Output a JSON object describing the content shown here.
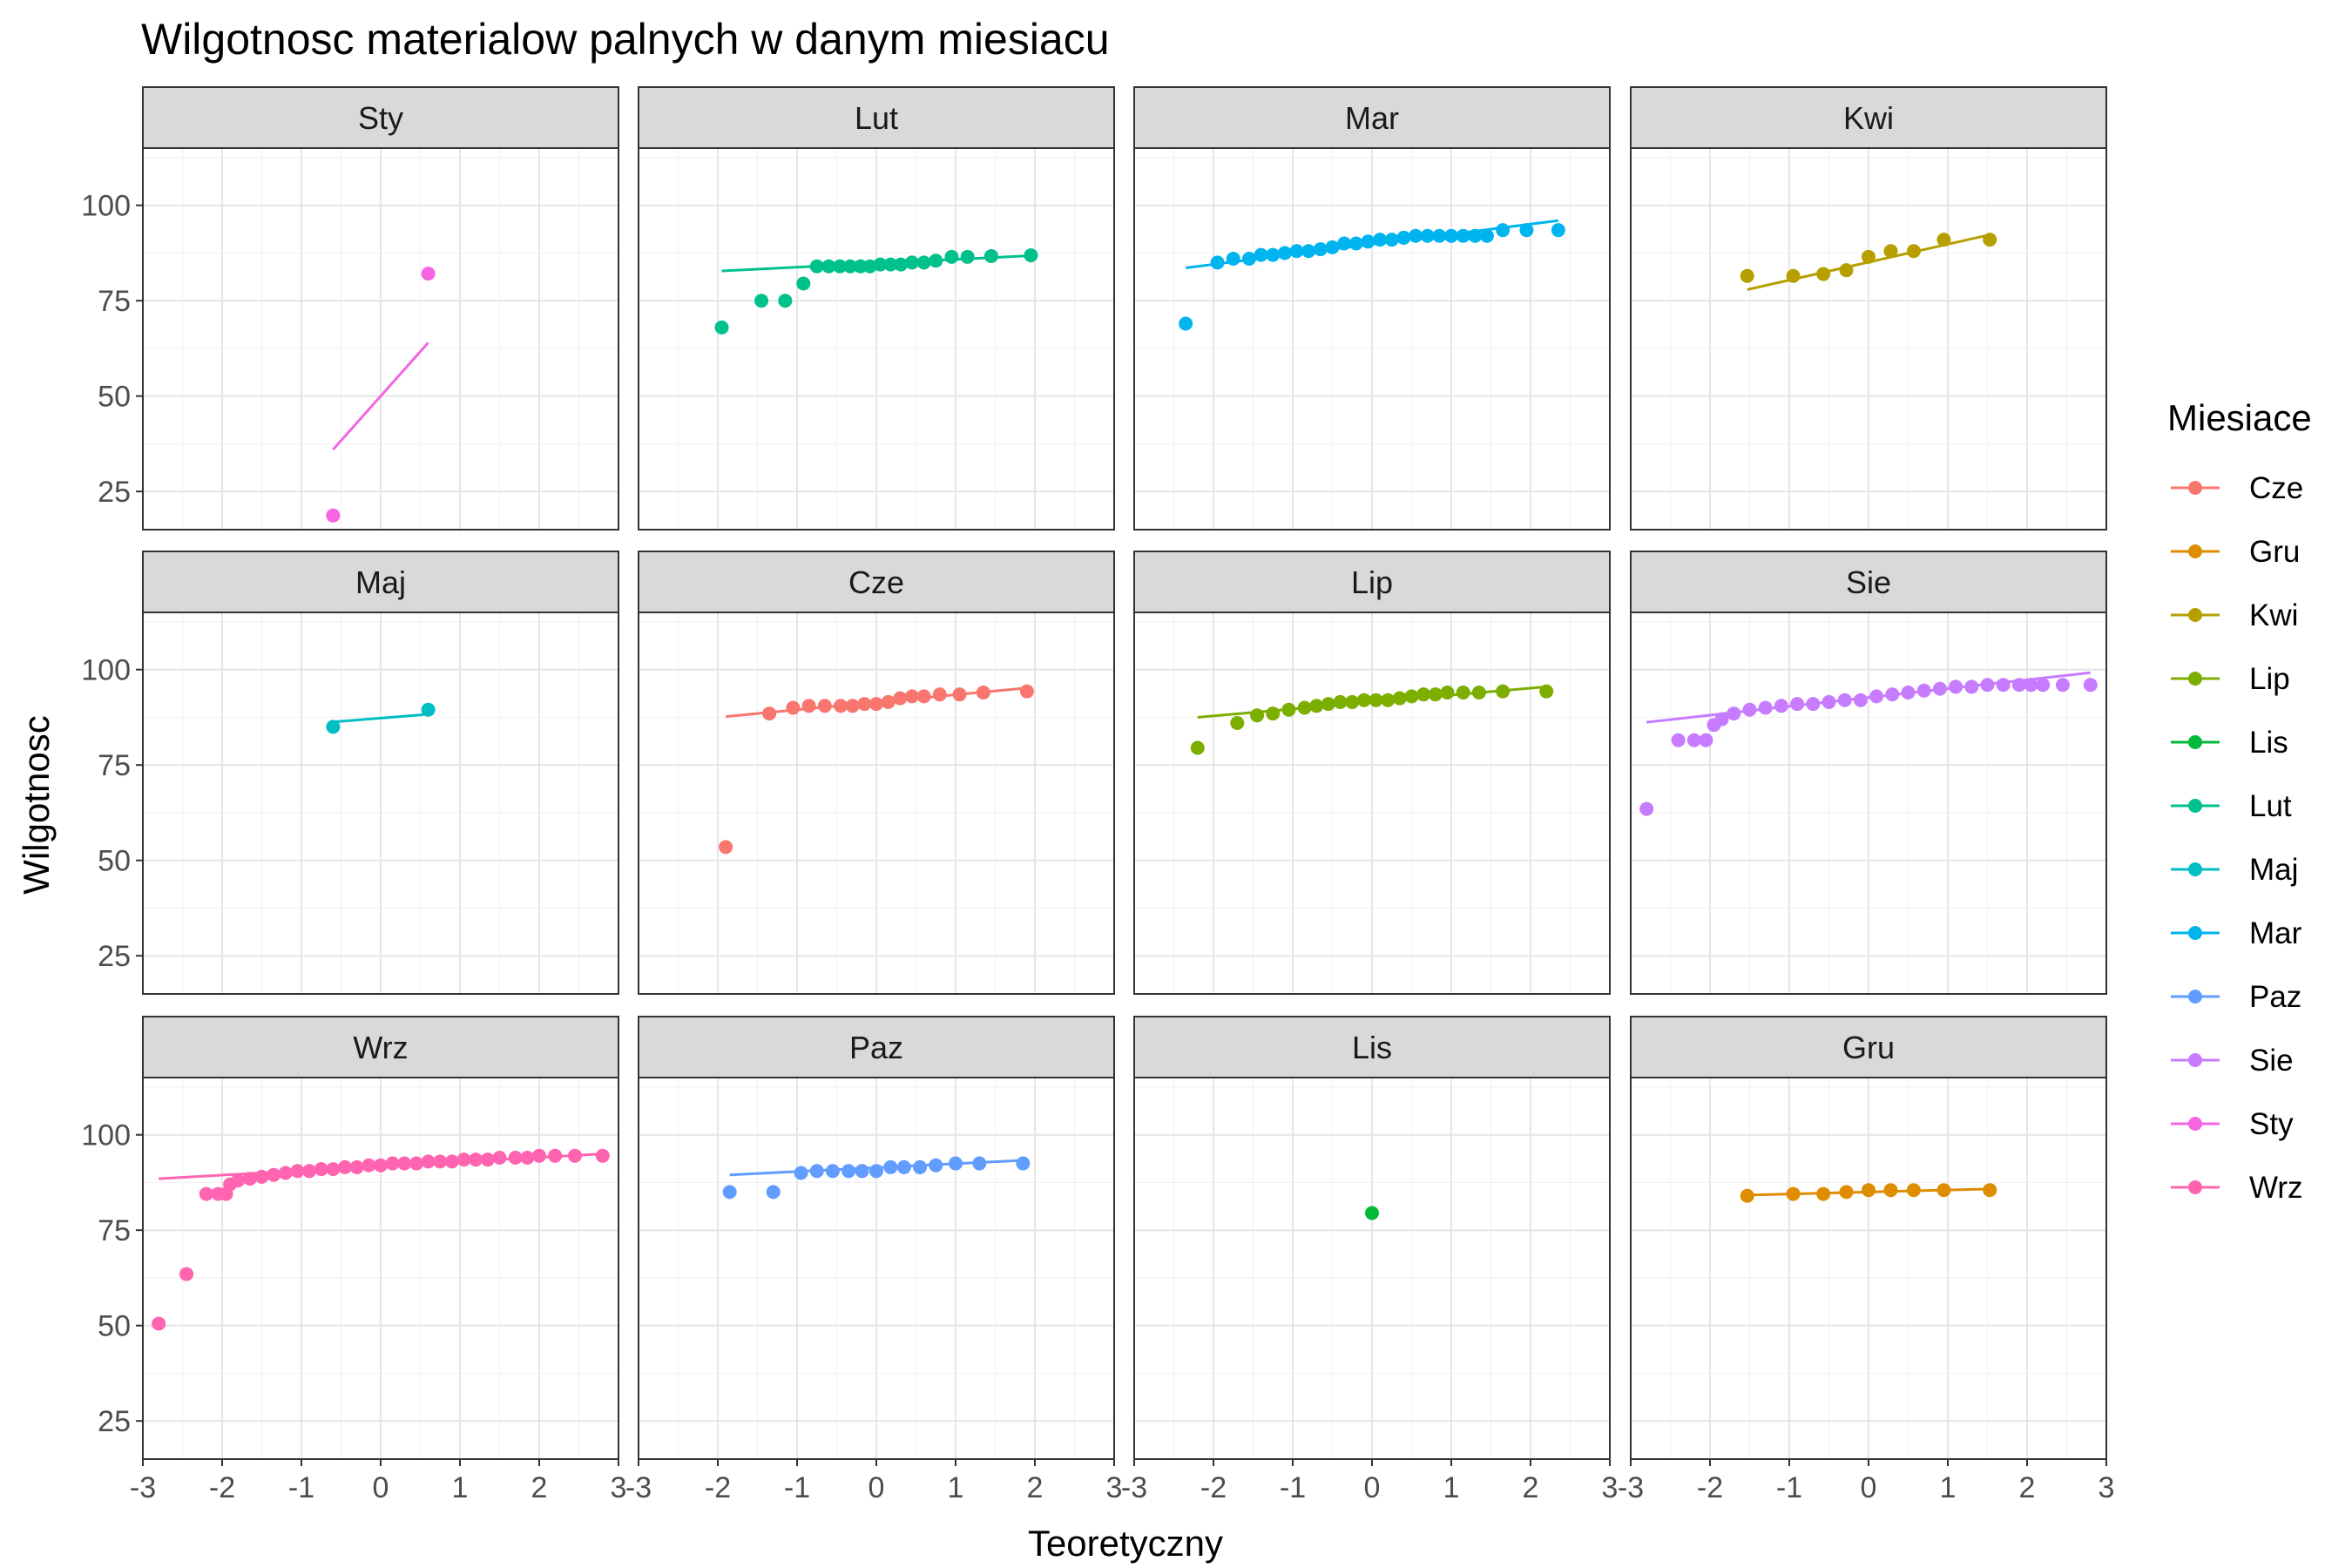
{
  "chart_data": {
    "type": "scatter",
    "subtype": "qq-plot facets",
    "title": "Wilgotnosc materialow palnych w danym miesiacu",
    "xlabel": "Teoretyczny",
    "ylabel": "Wilgotnosc",
    "xlim": [
      -3,
      3
    ],
    "ylim": [
      15,
      115
    ],
    "x_ticks": [
      "-3",
      "-2",
      "-1",
      "0",
      "1",
      "2",
      "3"
    ],
    "x_tick_values": [
      -3,
      -2,
      -1,
      0,
      1,
      2,
      3
    ],
    "y_ticks": [
      "25",
      "50",
      "75",
      "100"
    ],
    "y_tick_values": [
      25,
      50,
      75,
      100
    ],
    "grid": true,
    "legend": {
      "title": "Miesiace",
      "position": "right",
      "entries": [
        "Cze",
        "Gru",
        "Kwi",
        "Lip",
        "Lis",
        "Lut",
        "Maj",
        "Mar",
        "Paz",
        "Sie",
        "Sty",
        "Wrz"
      ],
      "colors": [
        "#F8766D",
        "#DE8C00",
        "#B79F00",
        "#7CAE00",
        "#00BA38",
        "#00C08B",
        "#00BFC4",
        "#00B4F0",
        "#619CFF",
        "#C77CFF",
        "#F564E3",
        "#FF64B0"
      ]
    },
    "panels": [
      {
        "label": "Sty",
        "color": "#F564E3",
        "line": [
          [
            -0.6,
            36
          ],
          [
            0.6,
            64
          ]
        ],
        "points": [
          [
            -0.6,
            18.7
          ],
          [
            0.6,
            82.1
          ]
        ]
      },
      {
        "label": "Lut",
        "color": "#00C08B",
        "line": [
          [
            -1.95,
            82.8
          ],
          [
            1.95,
            86.8
          ]
        ],
        "points": [
          [
            -1.95,
            68
          ],
          [
            -1.45,
            75
          ],
          [
            -1.15,
            75
          ],
          [
            -0.92,
            79.5
          ],
          [
            -0.75,
            84
          ],
          [
            -0.6,
            84
          ],
          [
            -0.46,
            84
          ],
          [
            -0.33,
            84
          ],
          [
            -0.2,
            84
          ],
          [
            -0.08,
            84
          ],
          [
            0.05,
            84.5
          ],
          [
            0.18,
            84.5
          ],
          [
            0.31,
            84.5
          ],
          [
            0.45,
            85
          ],
          [
            0.6,
            85
          ],
          [
            0.75,
            85.5
          ],
          [
            0.95,
            86.5
          ],
          [
            1.15,
            86.5
          ],
          [
            1.45,
            86.7
          ],
          [
            1.95,
            86.9
          ]
        ]
      },
      {
        "label": "Mar",
        "color": "#00B4F0",
        "line": [
          [
            -2.35,
            83.6
          ],
          [
            2.35,
            96
          ]
        ],
        "points": [
          [
            -2.35,
            69
          ],
          [
            -1.95,
            85
          ],
          [
            -1.75,
            86
          ],
          [
            -1.55,
            86
          ],
          [
            -1.4,
            87
          ],
          [
            -1.25,
            87
          ],
          [
            -1.1,
            87.5
          ],
          [
            -0.95,
            88
          ],
          [
            -0.8,
            88
          ],
          [
            -0.65,
            88.5
          ],
          [
            -0.5,
            89
          ],
          [
            -0.35,
            90
          ],
          [
            -0.2,
            90
          ],
          [
            -0.05,
            90.5
          ],
          [
            0.1,
            91
          ],
          [
            0.25,
            91
          ],
          [
            0.4,
            91.5
          ],
          [
            0.55,
            92
          ],
          [
            0.7,
            92
          ],
          [
            0.85,
            92
          ],
          [
            1.0,
            92
          ],
          [
            1.15,
            92
          ],
          [
            1.3,
            92
          ],
          [
            1.45,
            92
          ],
          [
            1.65,
            93.5
          ],
          [
            1.95,
            93.5
          ],
          [
            2.35,
            93.5
          ]
        ]
      },
      {
        "label": "Kwi",
        "color": "#B79F00",
        "line": [
          [
            -1.53,
            77.9
          ],
          [
            1.53,
            92.3
          ]
        ],
        "points": [
          [
            -1.53,
            81.5
          ],
          [
            -0.95,
            81.5
          ],
          [
            -0.57,
            82
          ],
          [
            -0.28,
            83
          ],
          [
            0,
            86.5
          ],
          [
            0.28,
            88
          ],
          [
            0.57,
            88
          ],
          [
            0.95,
            91
          ],
          [
            1.53,
            91
          ]
        ]
      },
      {
        "label": "Maj",
        "color": "#00BFC4",
        "line": [
          [
            -0.6,
            86.3
          ],
          [
            0.6,
            88.3
          ]
        ],
        "points": [
          [
            -0.6,
            85
          ],
          [
            0.6,
            89.5
          ]
        ]
      },
      {
        "label": "Cze",
        "color": "#F8766D",
        "line": [
          [
            -1.9,
            87.7
          ],
          [
            1.9,
            95.2
          ]
        ],
        "points": [
          [
            -1.9,
            53.5
          ],
          [
            -1.35,
            88.5
          ],
          [
            -1.05,
            90
          ],
          [
            -0.85,
            90.5
          ],
          [
            -0.65,
            90.5
          ],
          [
            -0.45,
            90.5
          ],
          [
            -0.3,
            90.5
          ],
          [
            -0.15,
            91
          ],
          [
            0,
            91
          ],
          [
            0.15,
            91.5
          ],
          [
            0.3,
            92.5
          ],
          [
            0.45,
            93
          ],
          [
            0.6,
            93
          ],
          [
            0.8,
            93.5
          ],
          [
            1.05,
            93.5
          ],
          [
            1.35,
            94
          ],
          [
            1.9,
            94.3
          ]
        ]
      },
      {
        "label": "Lip",
        "color": "#7CAE00",
        "line": [
          [
            -2.2,
            87.5
          ],
          [
            2.2,
            95.5
          ]
        ],
        "points": [
          [
            -2.2,
            79.5
          ],
          [
            -1.7,
            86
          ],
          [
            -1.45,
            88
          ],
          [
            -1.25,
            88.5
          ],
          [
            -1.05,
            89.5
          ],
          [
            -0.85,
            90
          ],
          [
            -0.7,
            90.5
          ],
          [
            -0.55,
            91
          ],
          [
            -0.4,
            91.5
          ],
          [
            -0.25,
            91.5
          ],
          [
            -0.1,
            92
          ],
          [
            0.05,
            92
          ],
          [
            0.2,
            92
          ],
          [
            0.35,
            92.5
          ],
          [
            0.5,
            93
          ],
          [
            0.65,
            93.5
          ],
          [
            0.8,
            93.5
          ],
          [
            0.95,
            94
          ],
          [
            1.15,
            94
          ],
          [
            1.35,
            94
          ],
          [
            1.65,
            94.3
          ],
          [
            2.2,
            94.3
          ]
        ]
      },
      {
        "label": "Sie",
        "color": "#C77CFF",
        "line": [
          [
            -2.8,
            86.2
          ],
          [
            2.8,
            99.2
          ]
        ],
        "points": [
          [
            -2.8,
            63.5
          ],
          [
            -2.4,
            81.5
          ],
          [
            -2.2,
            81.5
          ],
          [
            -2.05,
            81.5
          ],
          [
            -1.95,
            85.5
          ],
          [
            -1.85,
            87
          ],
          [
            -1.7,
            88.5
          ],
          [
            -1.5,
            89.5
          ],
          [
            -1.3,
            90
          ],
          [
            -1.1,
            90.5
          ],
          [
            -0.9,
            91
          ],
          [
            -0.7,
            91
          ],
          [
            -0.5,
            91.5
          ],
          [
            -0.3,
            92
          ],
          [
            -0.1,
            92
          ],
          [
            0.1,
            93
          ],
          [
            0.3,
            93.5
          ],
          [
            0.5,
            94
          ],
          [
            0.7,
            94.5
          ],
          [
            0.9,
            95
          ],
          [
            1.1,
            95.5
          ],
          [
            1.3,
            95.5
          ],
          [
            1.5,
            96
          ],
          [
            1.7,
            96
          ],
          [
            1.9,
            96
          ],
          [
            2.05,
            96
          ],
          [
            2.2,
            96
          ],
          [
            2.45,
            96
          ],
          [
            2.8,
            96
          ]
        ]
      },
      {
        "label": "Wrz",
        "color": "#FF64B0",
        "line": [
          [
            -2.8,
            88.5
          ],
          [
            2.8,
            95
          ]
        ],
        "points": [
          [
            -2.8,
            50.5
          ],
          [
            -2.45,
            63.5
          ],
          [
            -2.2,
            84.5
          ],
          [
            -2.05,
            84.5
          ],
          [
            -1.95,
            84.5
          ],
          [
            -1.9,
            87
          ],
          [
            -1.8,
            88
          ],
          [
            -1.65,
            88.5
          ],
          [
            -1.5,
            89
          ],
          [
            -1.35,
            89.5
          ],
          [
            -1.2,
            90
          ],
          [
            -1.05,
            90.5
          ],
          [
            -0.9,
            90.5
          ],
          [
            -0.75,
            91
          ],
          [
            -0.6,
            91
          ],
          [
            -0.45,
            91.5
          ],
          [
            -0.3,
            91.5
          ],
          [
            -0.15,
            92
          ],
          [
            0,
            92
          ],
          [
            0.15,
            92.5
          ],
          [
            0.3,
            92.5
          ],
          [
            0.45,
            92.5
          ],
          [
            0.6,
            93
          ],
          [
            0.75,
            93
          ],
          [
            0.9,
            93
          ],
          [
            1.05,
            93.5
          ],
          [
            1.2,
            93.5
          ],
          [
            1.35,
            93.5
          ],
          [
            1.5,
            94
          ],
          [
            1.7,
            94
          ],
          [
            1.85,
            94
          ],
          [
            2.0,
            94.5
          ],
          [
            2.2,
            94.5
          ],
          [
            2.45,
            94.5
          ],
          [
            2.8,
            94.5
          ]
        ]
      },
      {
        "label": "Paz",
        "color": "#619CFF",
        "line": [
          [
            -1.85,
            89.5
          ],
          [
            1.85,
            93.3
          ]
        ],
        "points": [
          [
            -1.85,
            85
          ],
          [
            -1.3,
            85
          ],
          [
            -0.95,
            90
          ],
          [
            -0.75,
            90.5
          ],
          [
            -0.55,
            90.5
          ],
          [
            -0.35,
            90.5
          ],
          [
            -0.18,
            90.5
          ],
          [
            0,
            90.5
          ],
          [
            0.18,
            91.5
          ],
          [
            0.35,
            91.5
          ],
          [
            0.55,
            91.5
          ],
          [
            0.75,
            92
          ],
          [
            1.0,
            92.5
          ],
          [
            1.3,
            92.5
          ],
          [
            1.85,
            92.5
          ]
        ]
      },
      {
        "label": "Lis",
        "color": "#00BA38",
        "line": [],
        "points": [
          [
            0,
            79.5
          ]
        ]
      },
      {
        "label": "Gru",
        "color": "#DE8C00",
        "line": [
          [
            -1.53,
            84.2
          ],
          [
            1.53,
            85.8
          ]
        ],
        "points": [
          [
            -1.53,
            84
          ],
          [
            -0.95,
            84.5
          ],
          [
            -0.57,
            84.5
          ],
          [
            -0.28,
            85
          ],
          [
            0,
            85.5
          ],
          [
            0.28,
            85.5
          ],
          [
            0.57,
            85.5
          ],
          [
            0.95,
            85.5
          ],
          [
            1.53,
            85.5
          ]
        ]
      }
    ]
  }
}
